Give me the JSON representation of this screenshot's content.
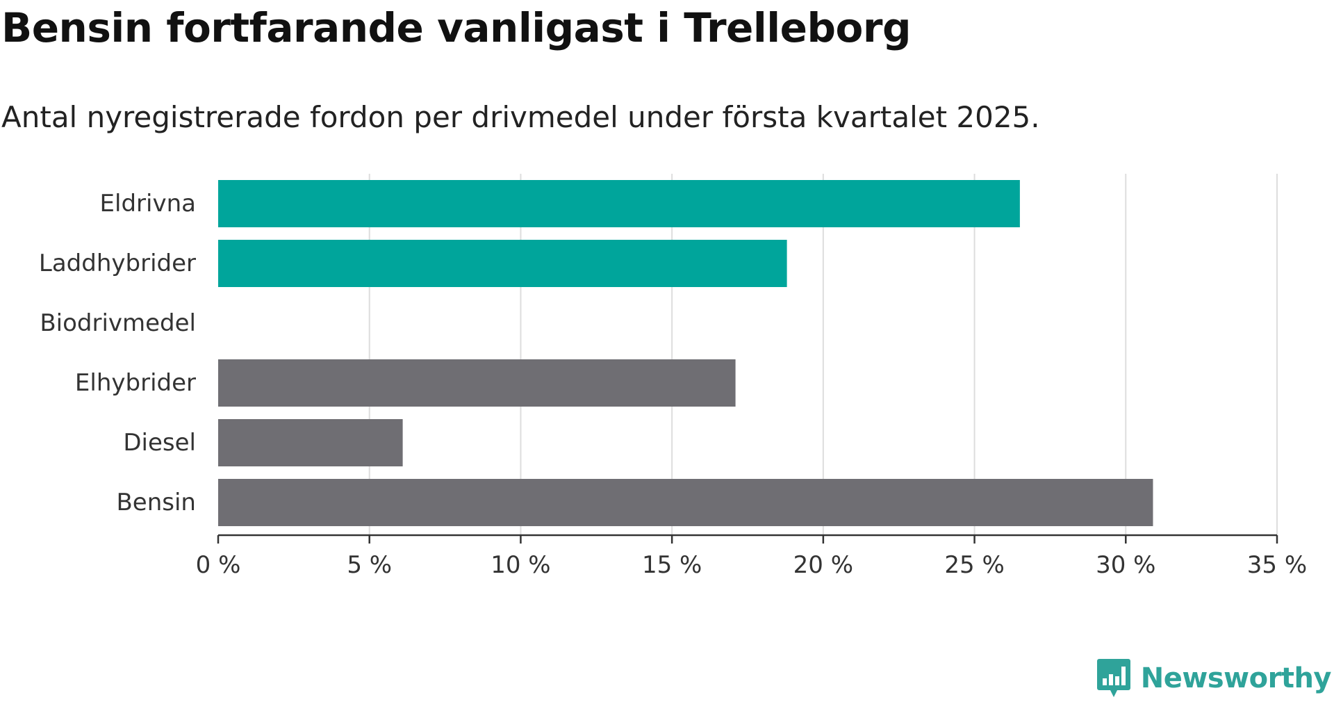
{
  "title": "Bensin fortfarande vanligast i Trelleborg",
  "subtitle": "Antal nyregistrerade fordon per drivmedel under första kvartalet 2025.",
  "brand": {
    "name": "Newsworthy",
    "logo_icon": "newsworthy-bar-chart-icon",
    "color": "#2fa39a"
  },
  "colors": {
    "highlight": "#00a59b",
    "default": "#6f6e73",
    "grid": "#dddddd",
    "axis": "#333333"
  },
  "chart_data": {
    "type": "bar",
    "orientation": "horizontal",
    "categories": [
      "Eldrivna",
      "Laddhybrider",
      "Biodrivmedel",
      "Elhybrider",
      "Diesel",
      "Bensin"
    ],
    "values": [
      26.5,
      18.8,
      0,
      17.1,
      6.1,
      30.9
    ],
    "highlighted": [
      true,
      true,
      false,
      false,
      false,
      false
    ],
    "xlim": [
      0,
      35
    ],
    "xticks": [
      0,
      5,
      10,
      15,
      20,
      25,
      30,
      35
    ],
    "xtick_labels": [
      "0 %",
      "5 %",
      "10 %",
      "15 %",
      "20 %",
      "25 %",
      "30 %",
      "35 %"
    ],
    "grid": true,
    "xlabel": "",
    "ylabel": ""
  }
}
